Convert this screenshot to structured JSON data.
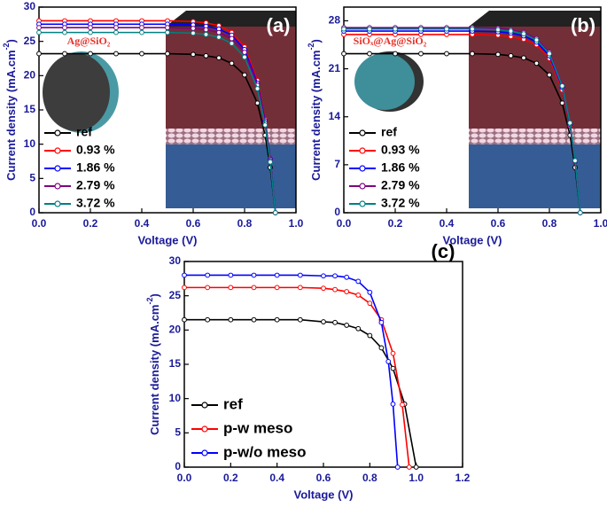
{
  "chart_data": [
    {
      "type": "line",
      "title": "(a)",
      "inset_label": "Ag@SiO₂",
      "xlabel": "Voltage (V)",
      "ylabel": "Current density (mA.cm",
      "ylabel_sup": "-2",
      "ylabel_end": ")",
      "xlim": [
        0,
        1
      ],
      "ylim": [
        0,
        30
      ],
      "xticks": [
        {
          "value": 0,
          "label": "0.0"
        },
        {
          "value": 0.2,
          "label": "0.2"
        },
        {
          "value": 0.4,
          "label": "0.4"
        },
        {
          "value": 0.6,
          "label": "0.6"
        },
        {
          "value": 0.8,
          "label": "0.8"
        },
        {
          "value": 1,
          "label": "1.0"
        }
      ],
      "yticks": [
        0,
        5,
        10,
        15,
        20,
        25,
        30
      ],
      "series": [
        {
          "name": "ref",
          "color": "#000000",
          "x": [
            0,
            0.1,
            0.2,
            0.3,
            0.4,
            0.5,
            0.6,
            0.65,
            0.7,
            0.75,
            0.8,
            0.85,
            0.88,
            0.9,
            0.92
          ],
          "values": [
            23.2,
            23.2,
            23.2,
            23.2,
            23.2,
            23.2,
            23.1,
            22.9,
            22.6,
            21.8,
            20.1,
            16.0,
            11.3,
            6.6,
            0
          ]
        },
        {
          "name": "0.93 %",
          "color": "#ff0000",
          "x": [
            0,
            0.1,
            0.2,
            0.3,
            0.4,
            0.5,
            0.6,
            0.65,
            0.7,
            0.75,
            0.8,
            0.85,
            0.88,
            0.9,
            0.92
          ],
          "values": [
            28,
            28,
            28,
            28,
            28,
            28,
            27.9,
            27.7,
            27.3,
            26.3,
            24.2,
            19.3,
            13.6,
            7.9,
            0
          ]
        },
        {
          "name": "1.86 %",
          "color": "#0000ff",
          "x": [
            0,
            0.1,
            0.2,
            0.3,
            0.4,
            0.5,
            0.6,
            0.65,
            0.7,
            0.75,
            0.8,
            0.85,
            0.88,
            0.9,
            0.92
          ],
          "values": [
            27.5,
            27.5,
            27.5,
            27.5,
            27.5,
            27.5,
            27.4,
            27.2,
            26.8,
            25.9,
            23.8,
            18.9,
            13.4,
            7.8,
            0
          ]
        },
        {
          "name": "2.79 %",
          "color": "#800080",
          "x": [
            0,
            0.1,
            0.2,
            0.3,
            0.4,
            0.5,
            0.6,
            0.65,
            0.7,
            0.75,
            0.8,
            0.85,
            0.88,
            0.9,
            0.92
          ],
          "values": [
            27,
            27,
            27,
            27,
            27,
            27,
            26.9,
            26.7,
            26.3,
            25.4,
            23.4,
            18.6,
            13.1,
            7.6,
            0
          ]
        },
        {
          "name": "3.72 %",
          "color": "#008080",
          "x": [
            0,
            0.1,
            0.2,
            0.3,
            0.4,
            0.5,
            0.6,
            0.65,
            0.7,
            0.75,
            0.8,
            0.85,
            0.88,
            0.9,
            0.92
          ],
          "values": [
            26.3,
            26.3,
            26.3,
            26.3,
            26.3,
            26.3,
            26.2,
            26.0,
            25.6,
            24.7,
            22.7,
            18.1,
            12.8,
            7.4,
            0
          ]
        }
      ]
    },
    {
      "type": "line",
      "title": "(b)",
      "inset_label": "SiOₓ@Ag@SiO₂",
      "xlabel": "Voltage (V)",
      "ylabel": "Current density (mA.cm",
      "ylabel_sup": "-2",
      "ylabel_end": ")",
      "xlim": [
        0,
        1
      ],
      "ylim": [
        0,
        30
      ],
      "xticks": [
        {
          "value": 0,
          "label": "0.0"
        },
        {
          "value": 0.2,
          "label": "0.2"
        },
        {
          "value": 0.4,
          "label": "0.4"
        },
        {
          "value": 0.6,
          "label": "0.6"
        },
        {
          "value": 0.8,
          "label": "0.8"
        },
        {
          "value": 1,
          "label": "1.0"
        }
      ],
      "yticks": [
        0,
        7,
        14,
        21,
        28
      ],
      "series": [
        {
          "name": "ref",
          "color": "#000000",
          "x": [
            0,
            0.1,
            0.2,
            0.3,
            0.4,
            0.5,
            0.6,
            0.65,
            0.7,
            0.75,
            0.8,
            0.85,
            0.88,
            0.9,
            0.92
          ],
          "values": [
            23.2,
            23.2,
            23.2,
            23.2,
            23.2,
            23.2,
            23.1,
            22.9,
            22.6,
            21.8,
            20.1,
            16.0,
            11.3,
            6.6,
            0
          ]
        },
        {
          "name": "0.93 %",
          "color": "#ff0000",
          "x": [
            0,
            0.1,
            0.2,
            0.3,
            0.4,
            0.5,
            0.6,
            0.65,
            0.7,
            0.75,
            0.8,
            0.85,
            0.88,
            0.9,
            0.92
          ],
          "values": [
            26,
            26,
            26,
            26,
            26,
            26,
            25.9,
            25.7,
            25.3,
            24.5,
            22.5,
            17.9,
            12.7,
            7.4,
            0
          ]
        },
        {
          "name": "1.86 %",
          "color": "#0000ff",
          "x": [
            0,
            0.1,
            0.2,
            0.3,
            0.4,
            0.5,
            0.6,
            0.65,
            0.7,
            0.75,
            0.8,
            0.85,
            0.88,
            0.9,
            0.92
          ],
          "values": [
            26.5,
            26.5,
            26.5,
            26.5,
            26.5,
            26.5,
            26.4,
            26.2,
            25.8,
            24.9,
            22.9,
            18.3,
            12.9,
            7.5,
            0
          ]
        },
        {
          "name": "2.79 %",
          "color": "#800080",
          "x": [
            0,
            0.1,
            0.2,
            0.3,
            0.4,
            0.5,
            0.6,
            0.65,
            0.7,
            0.75,
            0.8,
            0.85,
            0.88,
            0.9,
            0.92
          ],
          "values": [
            27,
            27,
            27,
            27,
            27,
            27,
            26.9,
            26.7,
            26.3,
            25.4,
            23.4,
            18.6,
            13.1,
            7.6,
            0
          ]
        },
        {
          "name": "3.72 %",
          "color": "#008080",
          "x": [
            0,
            0.1,
            0.2,
            0.3,
            0.4,
            0.5,
            0.6,
            0.65,
            0.7,
            0.75,
            0.8,
            0.85,
            0.88,
            0.9,
            0.92
          ],
          "values": [
            26.8,
            26.8,
            26.8,
            26.8,
            26.8,
            26.8,
            26.7,
            26.5,
            26.1,
            25.2,
            23.2,
            18.5,
            13.1,
            7.6,
            0
          ]
        }
      ]
    },
    {
      "type": "line",
      "title": "(c)",
      "xlabel": "Voltage (V)",
      "ylabel": "Current density (mA.cm",
      "ylabel_sup": "-2",
      "ylabel_end": ")",
      "xlim": [
        0,
        1.2
      ],
      "ylim": [
        0,
        30
      ],
      "xticks": [
        {
          "value": 0,
          "label": "0.0"
        },
        {
          "value": 0.2,
          "label": "0.2"
        },
        {
          "value": 0.4,
          "label": "0.4"
        },
        {
          "value": 0.6,
          "label": "0.6"
        },
        {
          "value": 0.8,
          "label": "0.8"
        },
        {
          "value": 1,
          "label": "1.0"
        },
        {
          "value": 1.2,
          "label": "1.2"
        }
      ],
      "yticks": [
        0,
        5,
        10,
        15,
        20,
        25,
        30
      ],
      "series": [
        {
          "name": "ref",
          "color": "#000000",
          "x": [
            0,
            0.1,
            0.2,
            0.3,
            0.4,
            0.5,
            0.6,
            0.65,
            0.7,
            0.75,
            0.8,
            0.85,
            0.9,
            0.95,
            1.0
          ],
          "values": [
            21.5,
            21.5,
            21.5,
            21.5,
            21.5,
            21.5,
            21.2,
            21.1,
            20.7,
            20.2,
            19.2,
            17.4,
            14.4,
            9.2,
            0
          ]
        },
        {
          "name": "p-w meso",
          "color": "#ff0000",
          "x": [
            0,
            0.1,
            0.2,
            0.3,
            0.4,
            0.5,
            0.6,
            0.65,
            0.7,
            0.75,
            0.8,
            0.85,
            0.9,
            0.94,
            0.97
          ],
          "values": [
            26.2,
            26.2,
            26.2,
            26.2,
            26.2,
            26.2,
            26.1,
            25.9,
            25.6,
            25.1,
            23.9,
            21.5,
            16.6,
            9.1,
            0
          ]
        },
        {
          "name": "p-w/o meso",
          "color": "#0000ff",
          "x": [
            0,
            0.1,
            0.2,
            0.3,
            0.4,
            0.5,
            0.6,
            0.65,
            0.7,
            0.75,
            0.8,
            0.85,
            0.88,
            0.9,
            0.92
          ],
          "values": [
            28,
            28,
            28,
            28,
            28,
            28,
            27.9,
            27.9,
            27.7,
            27.1,
            25.5,
            21.1,
            15.4,
            9.2,
            0
          ]
        }
      ]
    }
  ]
}
